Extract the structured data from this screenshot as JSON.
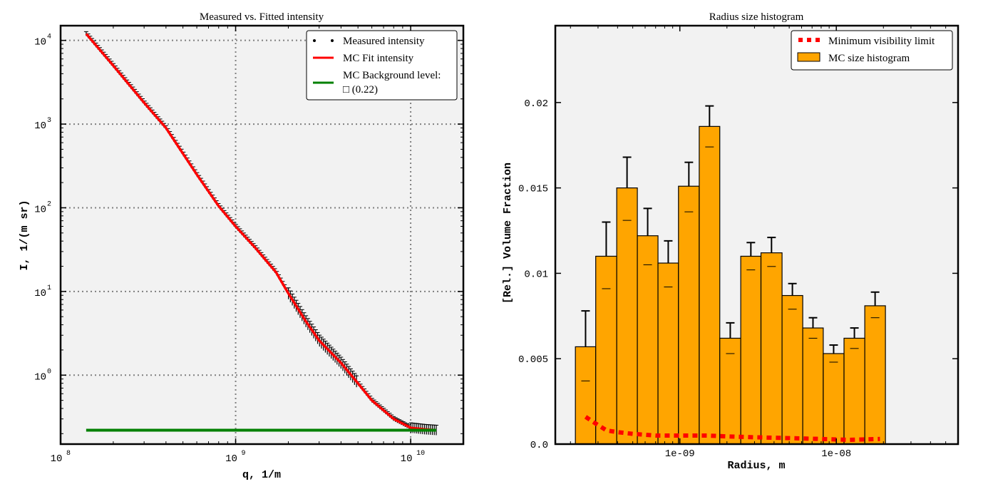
{
  "chart_data": [
    {
      "type": "line",
      "title": "Measured vs. Fitted intensity",
      "xlabel": "q, 1/m",
      "ylabel": "I, 1/(m sr)",
      "xscale": "log",
      "yscale": "log",
      "xlim": [
        100000000,
        20000000000
      ],
      "ylim": [
        0.15,
        15000
      ],
      "x_ticks": [
        {
          "base": "10",
          "exp": "8"
        },
        {
          "base": "10",
          "exp": "9"
        },
        {
          "base": "10",
          "exp": "10"
        }
      ],
      "y_ticks": [
        {
          "base": "10",
          "exp": "0"
        },
        {
          "base": "10",
          "exp": "1"
        },
        {
          "base": "10",
          "exp": "2"
        },
        {
          "base": "10",
          "exp": "3"
        },
        {
          "base": "10",
          "exp": "4"
        }
      ],
      "grid": true,
      "legend_position": "top-right",
      "legend": [
        {
          "label": "Measured intensity",
          "color": "#000000"
        },
        {
          "label": "MC Fit intensity",
          "color": "#ff0000"
        },
        {
          "label": "MC Background level:",
          "label2": "□ (0.22)",
          "color": "#008000"
        }
      ],
      "series": [
        {
          "name": "Measured intensity",
          "x": [
            140000000,
            200000000,
            300000000,
            400000000,
            600000000,
            800000000,
            1000000000,
            1300000000,
            1700000000,
            2000000000,
            2500000000,
            3000000000,
            4000000000,
            5000000000,
            6000000000,
            8000000000,
            10000000000,
            12000000000,
            14000000000
          ],
          "y": [
            12000,
            5000,
            1800,
            900,
            250,
            105,
            60,
            33,
            17,
            9.5,
            4.5,
            2.6,
            1.4,
            0.8,
            0.5,
            0.3,
            0.235,
            0.225,
            0.22
          ]
        },
        {
          "name": "MC Fit intensity",
          "x": [
            140000000,
            200000000,
            300000000,
            400000000,
            600000000,
            800000000,
            1000000000,
            1300000000,
            1700000000,
            2000000000,
            2500000000,
            3000000000,
            4000000000,
            5000000000,
            6000000000,
            8000000000,
            10000000000,
            12000000000,
            14000000000
          ],
          "y": [
            12000,
            5000,
            1800,
            900,
            250,
            105,
            60,
            33,
            17,
            9.5,
            4.5,
            2.6,
            1.4,
            0.8,
            0.5,
            0.3,
            0.235,
            0.225,
            0.22
          ]
        },
        {
          "name": "MC Background level",
          "x": [
            140000000,
            14000000000
          ],
          "y": [
            0.22,
            0.22
          ]
        }
      ],
      "colors": {
        "background": "#f2f2f2",
        "grid": "#808080",
        "measured": "#000000",
        "fit": "#ff0000",
        "background_level": "#008000"
      }
    },
    {
      "type": "bar",
      "title": "Radius size histogram",
      "xlabel": "Radius, m",
      "ylabel": "[Rel.] Volume Fraction",
      "xscale": "log",
      "xlim": [
        1.6e-10,
        6e-08
      ],
      "ylim": [
        0,
        0.0245
      ],
      "x_ticks": [
        {
          "label": "1e-09",
          "value": 1e-09
        },
        {
          "label": "1e-08",
          "value": 1e-08
        }
      ],
      "y_ticks": [
        {
          "label": "0.0",
          "value": 0
        },
        {
          "label": "0.005",
          "value": 0.005
        },
        {
          "label": "0.01",
          "value": 0.01
        },
        {
          "label": "0.015",
          "value": 0.015
        },
        {
          "label": "0.02",
          "value": 0.02
        }
      ],
      "grid": false,
      "legend_position": "top-right",
      "legend": [
        {
          "label": "Minimum visibility limit",
          "color": "#ff0000"
        },
        {
          "label": "MC size histogram",
          "color": "#ffa500"
        }
      ],
      "bin_edges": [
        2.15e-10,
        2.9e-10,
        3.95e-10,
        5.35e-10,
        7.25e-10,
        9.8e-10,
        1.33e-09,
        1.8e-09,
        2.45e-09,
        3.3e-09,
        4.5e-09,
        6.1e-09,
        8.25e-09,
        1.12e-08,
        1.52e-08,
        2.06e-08
      ],
      "values": [
        0.0057,
        0.011,
        0.015,
        0.0122,
        0.0106,
        0.0151,
        0.0186,
        0.0062,
        0.011,
        0.0112,
        0.0087,
        0.0068,
        0.0053,
        0.0062,
        0.0081
      ],
      "error_upper": [
        0.0078,
        0.013,
        0.0168,
        0.0138,
        0.0119,
        0.0165,
        0.0198,
        0.0071,
        0.0118,
        0.0121,
        0.0094,
        0.0074,
        0.0058,
        0.0068,
        0.0089
      ],
      "error_lower": [
        0.0037,
        0.0091,
        0.0131,
        0.0105,
        0.0092,
        0.0136,
        0.0174,
        0.0053,
        0.0102,
        0.0104,
        0.0079,
        0.0062,
        0.0048,
        0.0056,
        0.0074
      ],
      "visibility_limit": {
        "x": [
          2.5e-10,
          2.9e-10,
          3.4e-10,
          4e-10,
          5e-10,
          7e-10,
          1e-09,
          1.5e-09,
          2e-09,
          3e-09,
          5e-09,
          8e-09,
          1.2e-08,
          1.9e-08
        ],
        "y": [
          0.0016,
          0.0012,
          0.0008,
          0.0007,
          0.0006,
          0.0005,
          0.0005,
          0.0005,
          0.00045,
          0.0004,
          0.00035,
          0.0003,
          0.00025,
          0.0003
        ]
      },
      "colors": {
        "background": "#f2f2f2",
        "bar": "#ffa500",
        "limit": "#ff0000"
      }
    }
  ]
}
